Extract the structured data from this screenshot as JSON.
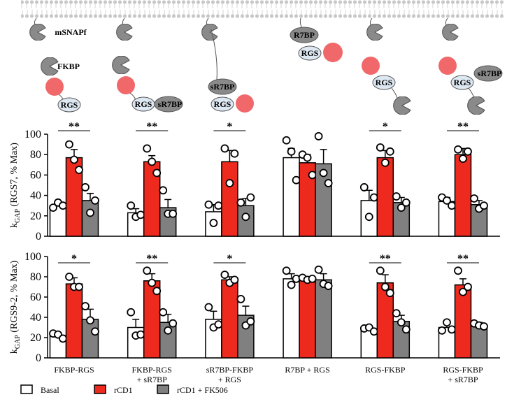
{
  "schematic": {
    "panels": [
      {
        "tag": "mSNAPf",
        "labels": [
          "FKBP",
          "RGS"
        ]
      },
      {
        "labels": [
          "RGS",
          "sR7BP"
        ]
      },
      {
        "labels": [
          "sR7BP",
          "RGS"
        ]
      },
      {
        "labels": [
          "R7BP",
          "RGS"
        ]
      },
      {
        "labels": [
          "RGS"
        ]
      },
      {
        "labels": [
          "RGS",
          "sR7BP"
        ]
      }
    ]
  },
  "chart_data": [
    {
      "type": "bar",
      "ylabel": [
        "k",
        "GAP",
        " (RGS7, % Max)"
      ],
      "ylim": [
        0,
        100
      ],
      "yticks": [
        0,
        20,
        40,
        60,
        80,
        100
      ],
      "significance": [
        "**",
        "**",
        "*",
        null,
        "*",
        "**"
      ],
      "series": [
        {
          "color": "#ffffff",
          "values": [
            30,
            23,
            24,
            77,
            35,
            34
          ],
          "errors": [
            4,
            4,
            7,
            9,
            10,
            4
          ],
          "points": [
            [
              28,
              33,
              30
            ],
            [
              30,
              19,
              21
            ],
            [
              31,
              13,
              30
            ],
            [
              94,
              83,
              55
            ],
            [
              48,
              19,
              38
            ],
            [
              38,
              35,
              30
            ]
          ]
        },
        {
          "color": "#ee2a1e",
          "values": [
            77,
            73,
            73,
            72,
            77,
            80
          ],
          "errors": [
            8,
            6,
            11,
            8,
            7,
            6
          ],
          "points": [
            [
              90,
              75,
              65
            ],
            [
              86,
              73,
              62
            ],
            [
              86,
              52,
              81
            ],
            [
              80,
              77,
              60
            ],
            [
              87,
              72,
              83
            ],
            [
              85,
              76,
              83
            ]
          ]
        },
        {
          "color": "#808080",
          "values": [
            35,
            28,
            30,
            71,
            33,
            31
          ],
          "errors": [
            7,
            8,
            7,
            14,
            5,
            4
          ],
          "points": [
            [
              48,
              23,
              35
            ],
            [
              45,
              22,
              22
            ],
            [
              33,
              19,
              38
            ],
            [
              98,
              62,
              52
            ],
            [
              39,
              28,
              33
            ],
            [
              37,
              27,
              30
            ]
          ]
        }
      ]
    },
    {
      "type": "bar",
      "ylabel": [
        "k",
        "GAP",
        " (RGS9-2, % Max)"
      ],
      "ylim": [
        0,
        100
      ],
      "yticks": [
        0,
        20,
        40,
        60,
        80,
        100
      ],
      "categories": [
        "FKBP-RGS",
        "FKBP-RGS\n+ sR7BP",
        "sR7BP-FKBP\n+ RGS",
        "R7BP + RGS",
        "RGS-FKBP",
        "RGS-FKBP\n+ sR7BP"
      ],
      "significance": [
        "*",
        "**",
        "*",
        null,
        "**",
        "**"
      ],
      "series": [
        {
          "name": "Basal",
          "color": "#ffffff",
          "values": [
            22,
            30,
            38,
            78,
            28,
            30
          ],
          "errors": [
            3,
            8,
            8,
            5,
            3,
            4
          ],
          "points": [
            [
              24,
              23,
              19
            ],
            [
              45,
              22,
              23
            ],
            [
              50,
              30,
              33
            ],
            [
              86,
              72,
              78
            ],
            [
              29,
              30,
              26
            ],
            [
              27,
              35,
              28
            ]
          ]
        },
        {
          "name": "rCD1",
          "color": "#ee2a1e",
          "values": [
            73,
            76,
            77,
            78,
            74,
            72
          ],
          "errors": [
            6,
            7,
            3,
            2,
            8,
            6
          ],
          "points": [
            [
              80,
              70,
              70
            ],
            [
              86,
              74,
              66
            ],
            [
              82,
              74,
              77
            ],
            [
              79,
              77,
              78
            ],
            [
              86,
              70,
              64
            ],
            [
              86,
              65,
              70
            ]
          ]
        },
        {
          "name": "rCD1 + FK506",
          "color": "#808080",
          "values": [
            38,
            35,
            42,
            77,
            36,
            32
          ],
          "errors": [
            10,
            8,
            9,
            6,
            6,
            3
          ],
          "points": [
            [
              51,
              37,
              26
            ],
            [
              45,
              27,
              34
            ],
            [
              58,
              32,
              36
            ],
            [
              87,
              73,
              71
            ],
            [
              44,
              35,
              28
            ],
            [
              34,
              32,
              31
            ]
          ]
        }
      ]
    }
  ]
}
